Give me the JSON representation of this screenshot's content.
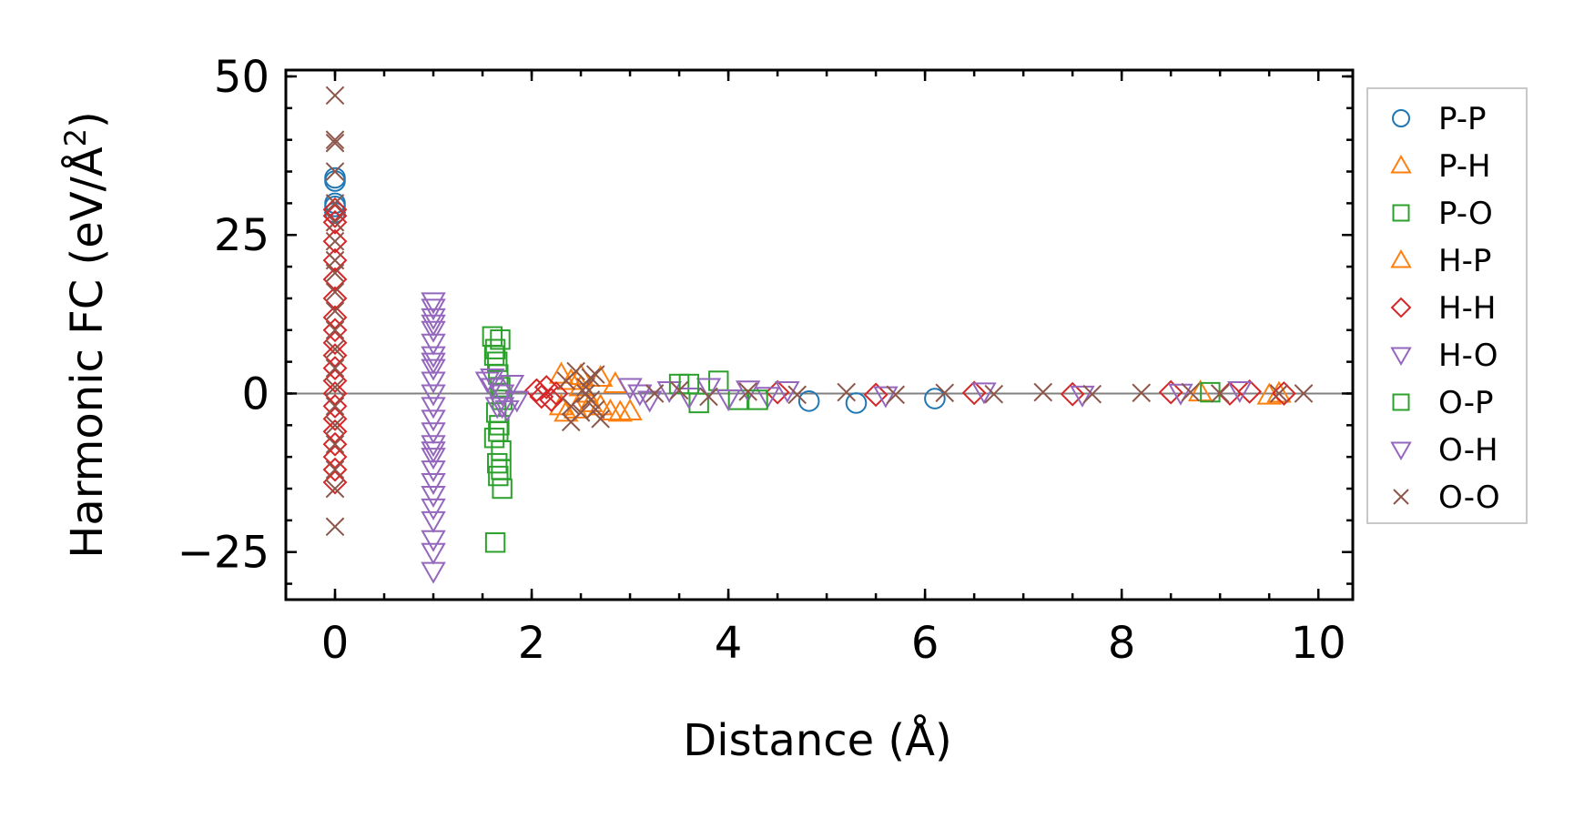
{
  "chart_data": {
    "type": "scatter",
    "title": "",
    "xlabel": "Distance (Å)",
    "ylabel": "Harmonic FC (eV/Å²)",
    "ylabel_base": "Harmonic FC (eV/Å",
    "ylabel_sup": "2",
    "ylabel_tail": ")",
    "xlim": [
      -0.5,
      10.35
    ],
    "ylim": [
      -32.5,
      51
    ],
    "xticks": [
      0,
      2,
      4,
      6,
      8,
      10
    ],
    "xtick_labels": [
      "0",
      "2",
      "4",
      "6",
      "8",
      "10"
    ],
    "yticks": [
      -25,
      0,
      25,
      50
    ],
    "ytick_labels": [
      "−25",
      "0",
      "25",
      "50"
    ],
    "x_minor_step": 0.5,
    "y_minor_step": 5,
    "zero_line": true,
    "grid": false,
    "legend_position": "outside-right",
    "series": [
      {
        "name": "P-P",
        "marker": "circle",
        "color": "#1f77b4",
        "x": [
          0,
          0,
          0,
          0,
          0,
          4.82,
          5.3,
          6.1
        ],
        "y": [
          34,
          33.5,
          30,
          29.5,
          28.5,
          -1.2,
          -1.5,
          -0.8
        ]
      },
      {
        "name": "P-H",
        "marker": "triangle-up",
        "color": "#ff7f0e",
        "x": [
          2.3,
          2.35,
          2.4,
          2.45,
          2.5,
          2.55,
          2.6,
          2.7,
          2.8,
          2.85,
          2.9,
          3.0,
          8.8,
          9.5
        ],
        "y": [
          3,
          -3,
          2,
          -2.5,
          1,
          0,
          -1.5,
          2.5,
          -2.8,
          1.5,
          -3,
          -2.8,
          0.2,
          -0.3
        ]
      },
      {
        "name": "P-O",
        "marker": "square",
        "color": "#2ca02c",
        "x": [
          1.6,
          1.63,
          1.65,
          1.66,
          1.68,
          1.7,
          1.64,
          1.67,
          1.62,
          1.69,
          1.65,
          1.66,
          1.7,
          1.63,
          1.68,
          3.5,
          3.7,
          3.9,
          4.1
        ],
        "y": [
          9,
          7,
          5,
          3,
          1,
          -1,
          -3,
          -5,
          -7,
          -9,
          -11,
          -13,
          -15,
          -23.5,
          8.5,
          1.5,
          -1.5,
          2,
          -1
        ]
      },
      {
        "name": "H-P",
        "marker": "triangle-up",
        "color": "#ff7f0e",
        "x": [
          2.3,
          2.5,
          2.7,
          9.6
        ],
        "y": [
          -2,
          2.8,
          -2,
          0
        ]
      },
      {
        "name": "H-H",
        "marker": "diamond",
        "color": "#d62728",
        "x": [
          0,
          0,
          0,
          0,
          0,
          0,
          0,
          0,
          0,
          0,
          0,
          0,
          0,
          0,
          0,
          0,
          0,
          0,
          0,
          0,
          0,
          2.05,
          2.1,
          2.15,
          2.2,
          2.25,
          4.5,
          5.5,
          6.5,
          7.5,
          8.5,
          9.1,
          9.3,
          9.65
        ],
        "y": [
          29,
          28,
          27,
          24,
          21,
          18,
          15,
          12,
          10,
          8,
          6,
          4,
          2,
          0,
          -2,
          -4,
          -6,
          -8,
          -10,
          -12,
          -14,
          0.5,
          -0.5,
          1,
          -1,
          0,
          0.2,
          -0.2,
          0.1,
          -0.1,
          0.2,
          0,
          0.3,
          0
        ]
      },
      {
        "name": "H-O",
        "marker": "triangle-down",
        "color": "#9467bd",
        "x": [
          1,
          1,
          1,
          1,
          1,
          1,
          1,
          1,
          1,
          1,
          1,
          1,
          1,
          1,
          1,
          1,
          1,
          1,
          1,
          1,
          1,
          1,
          1.55,
          1.6,
          1.65,
          1.7,
          1.75,
          1.8,
          1.85,
          3.0,
          3.2,
          3.4,
          3.6,
          3.8,
          4.0,
          4.2,
          4.4
        ],
        "y": [
          14.5,
          13.5,
          12,
          10,
          8,
          6,
          4,
          2,
          0,
          -2,
          -4,
          -6,
          -8,
          -10,
          -12,
          -14,
          -16,
          -18,
          -20,
          -23,
          -28,
          5,
          2,
          1,
          -2,
          0,
          -2.5,
          1.5,
          -1,
          1,
          -1,
          0.5,
          -0.5,
          1,
          -0.8,
          0.6,
          -0.4
        ]
      },
      {
        "name": "O-P",
        "marker": "square",
        "color": "#2ca02c",
        "x": [
          1.62,
          1.66,
          1.69,
          3.6,
          4.3,
          8.9
        ],
        "y": [
          6,
          -6,
          -12,
          1.5,
          -1,
          0.2
        ]
      },
      {
        "name": "O-H",
        "marker": "triangle-down",
        "color": "#9467bd",
        "x": [
          1,
          1,
          1,
          1.6,
          1.7,
          3.1,
          4.6,
          5.6,
          6.6,
          7.6,
          8.6,
          9.2
        ],
        "y": [
          11,
          -9,
          -25,
          2.5,
          -2,
          0,
          0.5,
          -0.3,
          0.3,
          -0.2,
          0.1,
          0.5
        ]
      },
      {
        "name": "O-O",
        "marker": "x",
        "color": "#8c564b",
        "x": [
          0,
          0,
          0,
          0,
          0,
          0,
          0,
          0,
          0,
          0,
          0,
          0,
          0,
          0,
          0,
          0,
          0,
          0,
          0,
          0,
          0,
          2.35,
          2.4,
          2.45,
          2.5,
          2.55,
          2.6,
          2.65,
          2.7,
          2.4,
          2.55,
          2.6,
          2.65,
          3.25,
          3.5,
          3.8,
          4.2,
          4.7,
          5.2,
          5.7,
          6.2,
          6.7,
          7.2,
          7.7,
          8.2,
          8.7,
          9.0,
          9.6,
          9.85
        ],
        "y": [
          47,
          40,
          39.5,
          35,
          30,
          27,
          24,
          21,
          19,
          16,
          13,
          10,
          7,
          4,
          1,
          -2,
          -5,
          -8,
          -12,
          -15,
          -21,
          2,
          -2,
          3.5,
          -3,
          1,
          -1,
          3,
          -4,
          -4.5,
          0,
          2.5,
          -2.5,
          0,
          0.5,
          -0.5,
          0.3,
          -0.2,
          0.2,
          -0.2,
          0.1,
          -0.1,
          0.2,
          -0.1,
          0.1,
          0.2,
          0,
          0,
          0
        ]
      }
    ]
  }
}
